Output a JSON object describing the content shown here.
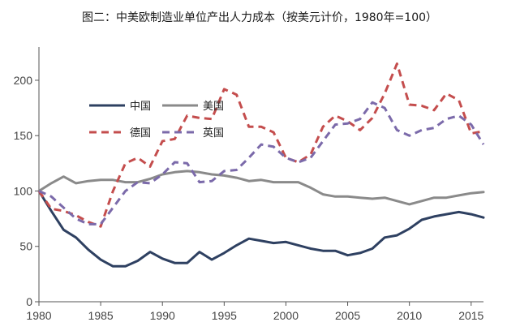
{
  "chart_data": {
    "type": "line",
    "title": "图二：中美欧制造业单位产出人力成本（按美元计价，1980年=100）",
    "xlabel": "",
    "ylabel": "",
    "xlim": [
      1980,
      2016
    ],
    "ylim": [
      0,
      230
    ],
    "xticks": [
      1980,
      1985,
      1990,
      1995,
      2000,
      2005,
      2010,
      2015
    ],
    "yticks": [
      0,
      50,
      100,
      150,
      200
    ],
    "grid": false,
    "legend_position": "top-left",
    "x": [
      1980,
      1981,
      1982,
      1983,
      1984,
      1985,
      1986,
      1987,
      1988,
      1989,
      1990,
      1991,
      1992,
      1993,
      1994,
      1995,
      1996,
      1997,
      1998,
      1999,
      2000,
      2001,
      2002,
      2003,
      2004,
      2005,
      2006,
      2007,
      2008,
      2009,
      2010,
      2011,
      2012,
      2013,
      2014,
      2015,
      2016
    ],
    "series": [
      {
        "name": "中国",
        "color": "#2e4061",
        "dash": "solid",
        "values": [
          100,
          82,
          65,
          58,
          47,
          38,
          32,
          32,
          37,
          45,
          39,
          35,
          35,
          45,
          38,
          44,
          51,
          57,
          55,
          53,
          54,
          51,
          48,
          46,
          46,
          42,
          44,
          48,
          58,
          60,
          66,
          74,
          77,
          79,
          81,
          79,
          76
        ]
      },
      {
        "name": "美国",
        "color": "#8a8a8a",
        "dash": "solid",
        "values": [
          100,
          107,
          113,
          107,
          109,
          110,
          110,
          108,
          108,
          111,
          115,
          117,
          118,
          117,
          115,
          114,
          112,
          109,
          110,
          108,
          108,
          108,
          103,
          97,
          95,
          95,
          94,
          93,
          94,
          91,
          88,
          91,
          94,
          94,
          96,
          98,
          99
        ]
      },
      {
        "name": "德国",
        "color": "#c44d4d",
        "dash": "dashed",
        "values": [
          100,
          84,
          82,
          78,
          72,
          68,
          100,
          125,
          130,
          122,
          145,
          147,
          168,
          166,
          165,
          192,
          187,
          158,
          158,
          153,
          130,
          126,
          133,
          158,
          168,
          163,
          155,
          166,
          188,
          215,
          178,
          177,
          173,
          188,
          182,
          152,
          154
        ]
      },
      {
        "name": "英国",
        "color": "#7b6aaa",
        "dash": "dashed",
        "values": [
          100,
          95,
          85,
          75,
          70,
          70,
          85,
          100,
          108,
          107,
          115,
          126,
          125,
          108,
          109,
          118,
          119,
          130,
          142,
          140,
          130,
          126,
          130,
          145,
          160,
          161,
          165,
          180,
          175,
          155,
          150,
          155,
          157,
          165,
          168,
          160,
          142
        ]
      }
    ]
  }
}
